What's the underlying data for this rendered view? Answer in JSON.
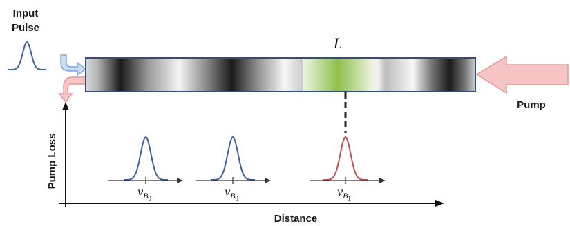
{
  "labels": {
    "input_line1": "Input",
    "input_line2": "Pulse",
    "length_symbol": "L",
    "pump": "Pump",
    "y_axis": "Pump Loss",
    "x_axis": "Distance"
  },
  "peaks": [
    {
      "symbol": "ν",
      "subscript": "B",
      "sub_index": "0"
    },
    {
      "symbol": "ν",
      "subscript": "B",
      "sub_index": "0"
    },
    {
      "symbol": "ν",
      "subscript": "B",
      "sub_index": "1"
    }
  ],
  "colors": {
    "pulse": "#3e6396",
    "peak_normal": "#3e6396",
    "peak_special": "#c0504d",
    "fiber_border": "#2f4f7f",
    "pump_fill": "#f7c4c4",
    "pump_stroke": "#e09a9a",
    "input_arrow": "#9dbde6",
    "reflect_arrow": "#f2a6a6",
    "grating_green": "#8fbf4a"
  }
}
